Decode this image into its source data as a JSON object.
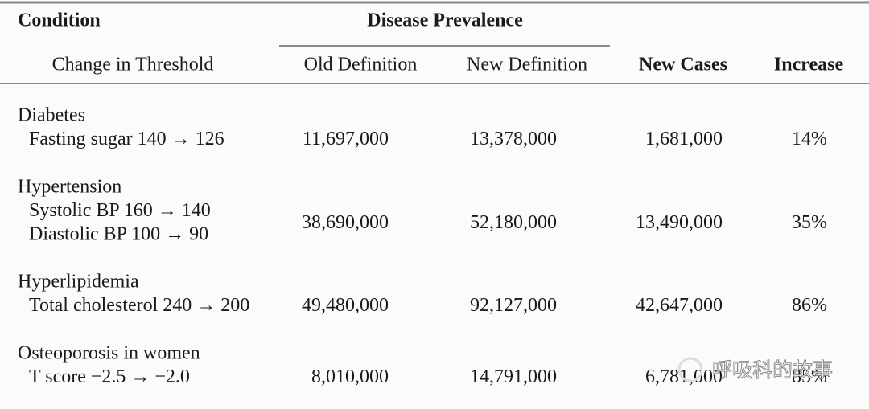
{
  "header": {
    "condition": "Condition",
    "disease_prevalence": "Disease Prevalence",
    "change_in_threshold": "Change in Threshold",
    "old_definition": "Old Definition",
    "new_definition": "New Definition",
    "new_cases": "New Cases",
    "increase": "Increase"
  },
  "rows": [
    {
      "condition": "Diabetes",
      "thresholds": [
        "Fasting sugar 140 → 126"
      ],
      "old": "11,697,000",
      "new": "13,378,000",
      "new_cases": "1,681,000",
      "increase": "14%"
    },
    {
      "condition": "Hypertension",
      "thresholds": [
        "Systolic BP 160 → 140",
        "Diastolic BP 100 → 90"
      ],
      "old": "38,690,000",
      "new": "52,180,000",
      "new_cases": "13,490,000",
      "increase": "35%"
    },
    {
      "condition": "Hyperlipidemia",
      "thresholds": [
        "Total cholesterol 240 → 200"
      ],
      "old": "49,480,000",
      "new": "92,127,000",
      "new_cases": "42,647,000",
      "increase": "86%"
    },
    {
      "condition": "Osteoporosis in women",
      "thresholds": [
        "T score −2.5 → −2.0"
      ],
      "old": "8,010,000",
      "new": "14,791,000",
      "new_cases": "6,781,000",
      "increase": "85%"
    }
  ],
  "watermark": "呼吸科的故事"
}
